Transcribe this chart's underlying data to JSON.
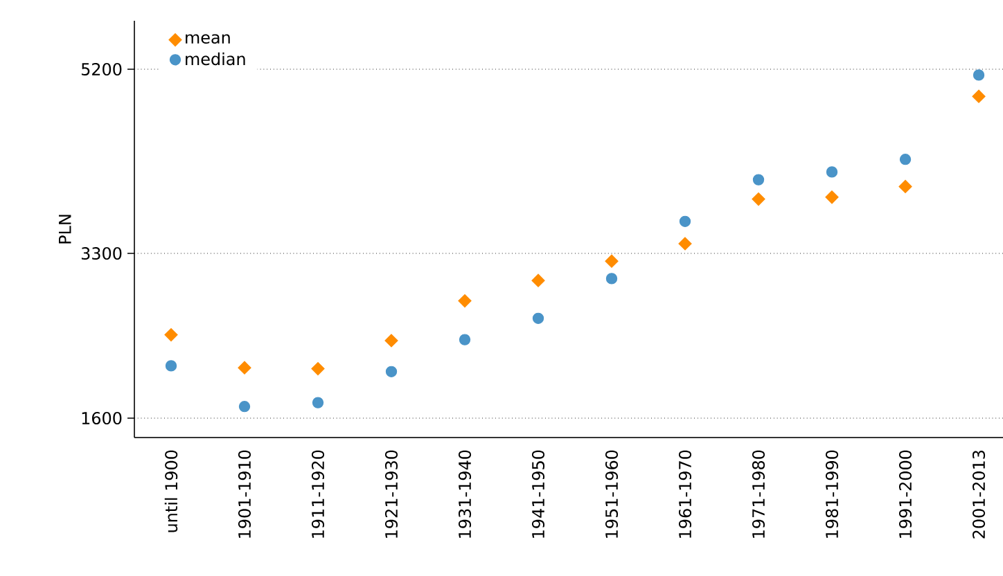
{
  "chart_data": {
    "type": "scatter",
    "ylabel": "PLN",
    "categories": [
      "until 1900",
      "1901-1910",
      "1911-1920",
      "1921-1930",
      "1931-1940",
      "1941-1950",
      "1951-1960",
      "1961-1970",
      "1971-1980",
      "1981-1990",
      "1991-2000",
      "2001-2013"
    ],
    "series": [
      {
        "name": "mean",
        "color": "#ff8c00",
        "marker": "diamond",
        "values": [
          2460,
          2120,
          2110,
          2400,
          2810,
          3020,
          3220,
          3400,
          3860,
          3880,
          3990,
          4920
        ]
      },
      {
        "name": "median",
        "color": "#4a94c8",
        "marker": "circle",
        "values": [
          2140,
          1720,
          1760,
          2080,
          2410,
          2630,
          3040,
          3630,
          4060,
          4140,
          4270,
          5140
        ]
      }
    ],
    "ylim": [
      1400,
      5700
    ],
    "yticks": [
      1600,
      3300,
      5200
    ],
    "grid": "y",
    "legend": "top left"
  }
}
